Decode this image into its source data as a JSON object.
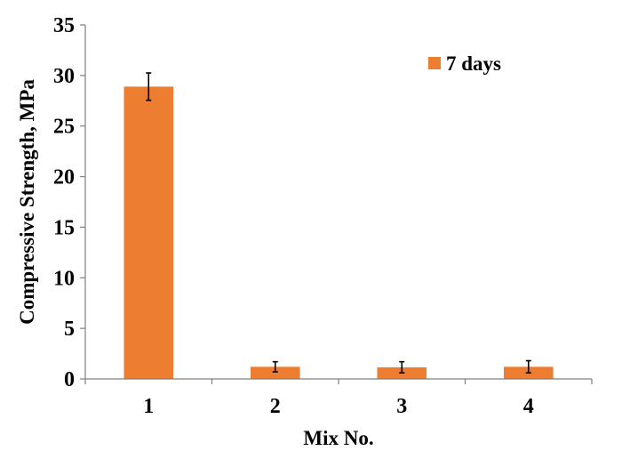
{
  "chart_data": {
    "type": "bar",
    "title": "",
    "xlabel": "Mix No.",
    "ylabel": "Compressive Strength, MPa",
    "categories": [
      "1",
      "2",
      "3",
      "4"
    ],
    "series": [
      {
        "name": "7 days",
        "color": "#ED7D31",
        "values": [
          28.9,
          1.2,
          1.15,
          1.2
        ],
        "error": [
          1.35,
          0.5,
          0.55,
          0.6
        ]
      }
    ],
    "ylim": [
      0,
      35
    ],
    "yticks": [
      "0",
      "5",
      "10",
      "15",
      "20",
      "25",
      "30",
      "35"
    ],
    "grid": false,
    "legend_position": "top-right"
  }
}
